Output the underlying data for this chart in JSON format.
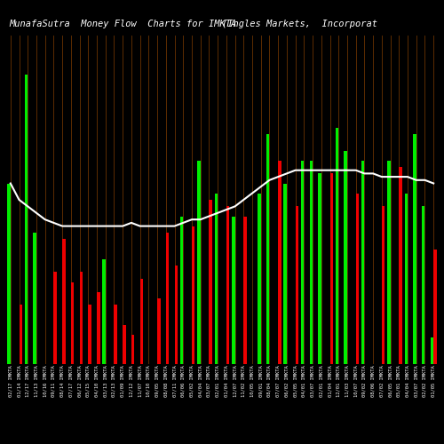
{
  "title_left": "MunafaSutra  Money Flow  Charts for IMKTA",
  "title_right": "(Ingles Markets,  Incorporat",
  "background_color": "#000000",
  "grid_color": "#6B3300",
  "line_color": "#ffffff",
  "green_color": "#00ee00",
  "red_color": "#ee0000",
  "labels": [
    "02/17 IMKTA",
    "01/14 IMKTA",
    "12/17 IMKTA",
    "11/13 IMKTA",
    "10/16 IMKTA",
    "09/11 IMKTA",
    "08/14 IMKTA",
    "07/17 IMKTA",
    "06/12 IMKTA",
    "05/15 IMKTA",
    "04/10 IMKTA",
    "03/13 IMKTA",
    "02/13 IMKTA",
    "01/09 IMKTA",
    "12/12 IMKTA",
    "11/07 IMKTA",
    "10/10 IMKTA",
    "09/05 IMKTA",
    "08/08 IMKTA",
    "07/11 IMKTA",
    "06/06 IMKTA",
    "05/02 IMKTA",
    "04/04 IMKTA",
    "03/07 IMKTA",
    "02/01 IMKTA",
    "01/04 IMKTA",
    "12/07 IMKTA",
    "11/02 IMKTA",
    "10/05 IMKTA",
    "09/01 IMKTA",
    "08/04 IMKTA",
    "07/07 IMKTA",
    "06/02 IMKTA",
    "05/05 IMKTA",
    "04/01 IMKTA",
    "03/07 IMKTA",
    "02/01 IMKTA",
    "01/04 IMKTA",
    "12/01 IMKTA",
    "11/03 IMKTA",
    "10/07 IMKTA",
    "09/02 IMKTA",
    "08/06 IMKTA",
    "07/02 IMKTA",
    "06/05 IMKTA",
    "05/01 IMKTA",
    "04/04 IMKTA",
    "03/07 IMKTA",
    "02/02 IMKTA",
    "01/05 IMKTA"
  ],
  "green_values": [
    55,
    0,
    88,
    40,
    0,
    0,
    0,
    0,
    0,
    0,
    0,
    32,
    0,
    0,
    0,
    0,
    0,
    0,
    0,
    0,
    45,
    0,
    62,
    0,
    52,
    0,
    45,
    0,
    0,
    52,
    70,
    0,
    55,
    0,
    62,
    62,
    58,
    0,
    72,
    65,
    0,
    62,
    0,
    0,
    62,
    0,
    52,
    70,
    48,
    8
  ],
  "red_values": [
    0,
    18,
    0,
    0,
    0,
    28,
    38,
    25,
    28,
    18,
    22,
    0,
    18,
    12,
    9,
    26,
    0,
    20,
    40,
    30,
    0,
    42,
    0,
    50,
    0,
    48,
    0,
    45,
    0,
    0,
    0,
    62,
    0,
    48,
    0,
    0,
    0,
    58,
    0,
    0,
    52,
    0,
    0,
    48,
    0,
    60,
    0,
    0,
    0,
    35
  ],
  "line_values": [
    55,
    50,
    48,
    46,
    44,
    43,
    42,
    42,
    42,
    42,
    42,
    42,
    42,
    42,
    43,
    42,
    42,
    42,
    42,
    42,
    43,
    44,
    44,
    45,
    46,
    47,
    48,
    50,
    52,
    54,
    56,
    57,
    58,
    59,
    59,
    59,
    59,
    59,
    59,
    59,
    59,
    58,
    58,
    57,
    57,
    57,
    57,
    56,
    56,
    55
  ],
  "ylim_max": 100,
  "title_fontsize": 7.5,
  "label_fontsize": 4.0,
  "bar_width": 0.36
}
